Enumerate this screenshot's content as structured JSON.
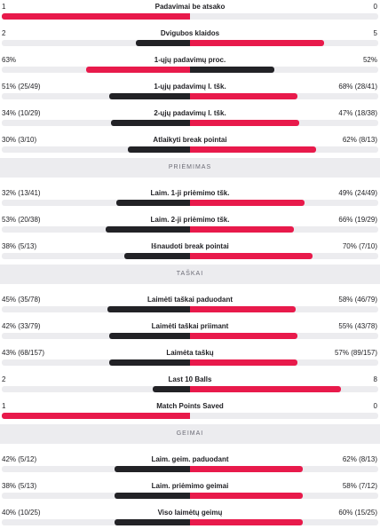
{
  "colors": {
    "red": "#e81a4b",
    "dark": "#222226",
    "track": "#ececef"
  },
  "groups": [
    {
      "header": "",
      "rows": [
        {
          "label": "Padavimai be atsako",
          "left": "1",
          "right": "0",
          "left_share": 1.0,
          "right_share": 0.0,
          "left_color": "red",
          "right_color": "dark"
        },
        {
          "label": "Dvigubos klaidos",
          "left": "2",
          "right": "5",
          "left_share": 0.29,
          "right_share": 0.71,
          "left_color": "dark",
          "right_color": "red"
        },
        {
          "label": "1-ųjų padavimų proc.",
          "left": "63%",
          "right": "52%",
          "left_share": 0.55,
          "right_share": 0.45,
          "left_color": "red",
          "right_color": "dark"
        },
        {
          "label": "1-ųjų padavimų l. tšk.",
          "left": "51% (25/49)",
          "right": "68% (28/41)",
          "left_share": 0.43,
          "right_share": 0.57,
          "left_color": "dark",
          "right_color": "red"
        },
        {
          "label": "2-ųjų padavimų l. tšk.",
          "left": "34% (10/29)",
          "right": "47% (18/38)",
          "left_share": 0.42,
          "right_share": 0.58,
          "left_color": "dark",
          "right_color": "red"
        },
        {
          "label": "Atlaikyti break pointai",
          "left": "30% (3/10)",
          "right": "62% (8/13)",
          "left_share": 0.33,
          "right_share": 0.67,
          "left_color": "dark",
          "right_color": "red"
        }
      ]
    },
    {
      "header": "PRIĖMIMAS",
      "rows": [
        {
          "label": "Laim. 1-ji priėmimo tšk.",
          "left": "32% (13/41)",
          "right": "49% (24/49)",
          "left_share": 0.39,
          "right_share": 0.61,
          "left_color": "dark",
          "right_color": "red"
        },
        {
          "label": "Laim. 2-ji priėmimo tšk.",
          "left": "53% (20/38)",
          "right": "66% (19/29)",
          "left_share": 0.45,
          "right_share": 0.55,
          "left_color": "dark",
          "right_color": "red"
        },
        {
          "label": "Išnaudoti break pointai",
          "left": "38% (5/13)",
          "right": "70% (7/10)",
          "left_share": 0.35,
          "right_share": 0.65,
          "left_color": "dark",
          "right_color": "red"
        }
      ]
    },
    {
      "header": "TAŠKAI",
      "rows": [
        {
          "label": "Laimėti taškai paduodant",
          "left": "45% (35/78)",
          "right": "58% (46/79)",
          "left_share": 0.44,
          "right_share": 0.56,
          "left_color": "dark",
          "right_color": "red"
        },
        {
          "label": "Laimėti taškai priimant",
          "left": "42% (33/79)",
          "right": "55% (43/78)",
          "left_share": 0.43,
          "right_share": 0.57,
          "left_color": "dark",
          "right_color": "red"
        },
        {
          "label": "Laimėta taškų",
          "left": "43% (68/157)",
          "right": "57% (89/157)",
          "left_share": 0.43,
          "right_share": 0.57,
          "left_color": "dark",
          "right_color": "red"
        },
        {
          "label": "Last 10 Balls",
          "left": "2",
          "right": "8",
          "left_share": 0.2,
          "right_share": 0.8,
          "left_color": "dark",
          "right_color": "red"
        },
        {
          "label": "Match Points Saved",
          "left": "1",
          "right": "0",
          "left_share": 1.0,
          "right_share": 0.0,
          "left_color": "red",
          "right_color": "dark"
        }
      ]
    },
    {
      "header": "GEIMAI",
      "rows": [
        {
          "label": "Laim. geim. paduodant",
          "left": "42% (5/12)",
          "right": "62% (8/13)",
          "left_share": 0.4,
          "right_share": 0.6,
          "left_color": "dark",
          "right_color": "red"
        },
        {
          "label": "Laim. priėmimo geimai",
          "left": "38% (5/13)",
          "right": "58% (7/12)",
          "left_share": 0.4,
          "right_share": 0.6,
          "left_color": "dark",
          "right_color": "red"
        },
        {
          "label": "Viso laimėtų geimų",
          "left": "40% (10/25)",
          "right": "60% (15/25)",
          "left_share": 0.4,
          "right_share": 0.6,
          "left_color": "dark",
          "right_color": "red"
        }
      ]
    }
  ]
}
